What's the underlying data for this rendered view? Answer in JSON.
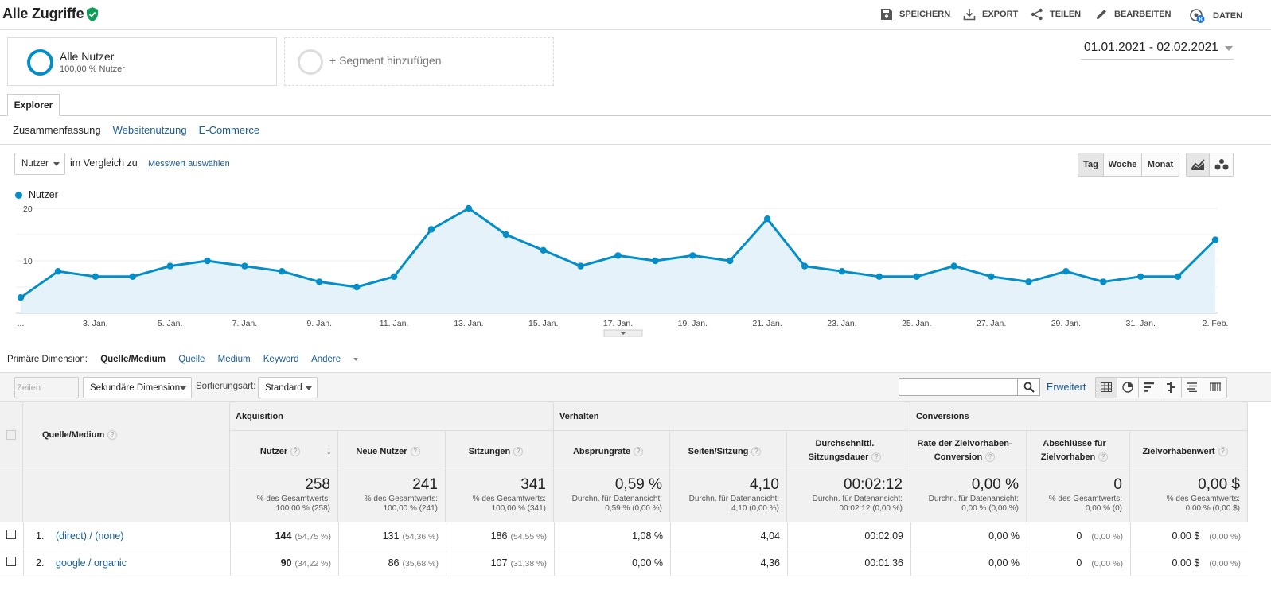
{
  "header": {
    "title": "Alle Zugriffe",
    "actions": [
      {
        "label": "SPEICHERN",
        "icon": "save-icon"
      },
      {
        "label": "EXPORT",
        "icon": "export-icon"
      },
      {
        "label": "TEILEN",
        "icon": "share-icon"
      },
      {
        "label": "BEARBEITEN",
        "icon": "edit-icon"
      },
      {
        "label": "DATEN",
        "icon": "data-icon",
        "badge": "8"
      }
    ]
  },
  "segments": {
    "active": {
      "name": "Alle Nutzer",
      "sub": "100,00 % Nutzer"
    },
    "add_label": "+ Segment hinzufügen"
  },
  "date_range": "01.01.2021 - 02.02.2021",
  "tabs": {
    "main": "Explorer",
    "sub": [
      "Zusammenfassung",
      "Websitenutzung",
      "E-Commerce"
    ]
  },
  "chart_controls": {
    "metric": "Nutzer",
    "compare_text": "im Vergleich zu",
    "compare_link": "Messwert auswählen",
    "granularity": [
      "Tag",
      "Woche",
      "Monat"
    ],
    "active_granularity": "Tag"
  },
  "chart_data": {
    "type": "area",
    "legend": "Nutzer",
    "color": "#058dc7",
    "y_ticks": [
      "20",
      "10"
    ],
    "ylim": [
      0,
      20
    ],
    "x_labels": [
      "...",
      "3. Jan.",
      "5. Jan.",
      "7. Jan.",
      "9. Jan.",
      "11. Jan.",
      "13. Jan.",
      "15. Jan.",
      "17. Jan.",
      "19. Jan.",
      "21. Jan.",
      "23. Jan.",
      "25. Jan.",
      "27. Jan.",
      "29. Jan.",
      "31. Jan.",
      "2. Feb."
    ],
    "values": [
      3,
      8,
      7,
      7,
      9,
      10,
      9,
      8,
      6,
      5,
      7,
      16,
      20,
      15,
      12,
      9,
      11,
      10,
      11,
      10,
      18,
      9,
      8,
      7,
      7,
      9,
      7,
      6,
      8,
      6,
      7,
      7,
      14
    ]
  },
  "dimensions": {
    "label": "Primäre Dimension:",
    "active": "Quelle/Medium",
    "others": [
      "Quelle",
      "Medium",
      "Keyword",
      "Andere"
    ]
  },
  "toolbar": {
    "rows_btn": "Zeilen darstellen",
    "secondary": "Sekundäre Dimension",
    "sort_label": "Sortierungsart:",
    "sort_value": "Standard",
    "advanced": "Erweitert",
    "search_placeholder": ""
  },
  "table": {
    "dim_header": "Quelle/Medium",
    "groups": [
      "Akquisition",
      "Verhalten",
      "Conversions"
    ],
    "columns": [
      "Nutzer",
      "Neue Nutzer",
      "Sitzungen",
      "Absprungrate",
      "Seiten/Sitzung",
      "Durchschnittl. Sitzungsdauer",
      "Rate der Zielvorhaben-Conversion",
      "Abschlüsse für Zielvorhaben",
      "Zielvorhabenwert"
    ],
    "totals": [
      {
        "value": "258",
        "l1": "% des Gesamtwerts:",
        "l2": "100,00 % (258)"
      },
      {
        "value": "241",
        "l1": "% des Gesamtwerts:",
        "l2": "100,00 % (241)"
      },
      {
        "value": "341",
        "l1": "% des Gesamtwerts:",
        "l2": "100,00 % (341)"
      },
      {
        "value": "0,59 %",
        "l1": "Durchn. für Datenansicht:",
        "l2": "0,59 % (0,00 %)"
      },
      {
        "value": "4,10",
        "l1": "Durchn. für Datenansicht:",
        "l2": "4,10 (0,00 %)"
      },
      {
        "value": "00:02:12",
        "l1": "Durchn. für Datenansicht:",
        "l2": "00:02:12 (0,00 %)"
      },
      {
        "value": "0,00 %",
        "l1": "Durchn. für Datenansicht:",
        "l2": "0,00 % (0,00 %)"
      },
      {
        "value": "0",
        "l1": "% des Gesamtwerts:",
        "l2": "0,00 % (0)"
      },
      {
        "value": "0,00 $",
        "l1": "% des Gesamtwerts:",
        "l2": "0,00 % (0,00 $)"
      }
    ],
    "rows": [
      {
        "num": "1.",
        "name": "(direct) / (none)",
        "cells": [
          [
            "144",
            "(54,75 %)"
          ],
          [
            "131",
            "(54,36 %)"
          ],
          [
            "186",
            "(54,55 %)"
          ],
          [
            "1,08 %",
            ""
          ],
          [
            "4,04",
            ""
          ],
          [
            "00:02:09",
            ""
          ],
          [
            "0,00 %",
            ""
          ],
          [
            "0",
            "(0,00 %)"
          ],
          [
            "0,00 $",
            "(0,00 %)"
          ]
        ]
      },
      {
        "num": "2.",
        "name": "google / organic",
        "cells": [
          [
            "90",
            "(34,22 %)"
          ],
          [
            "86",
            "(35,68 %)"
          ],
          [
            "107",
            "(31,38 %)"
          ],
          [
            "0,00 %",
            ""
          ],
          [
            "4,36",
            ""
          ],
          [
            "00:01:36",
            ""
          ],
          [
            "0,00 %",
            ""
          ],
          [
            "0",
            "(0,00 %)"
          ],
          [
            "0,00 $",
            "(0,00 %)"
          ]
        ]
      }
    ]
  }
}
